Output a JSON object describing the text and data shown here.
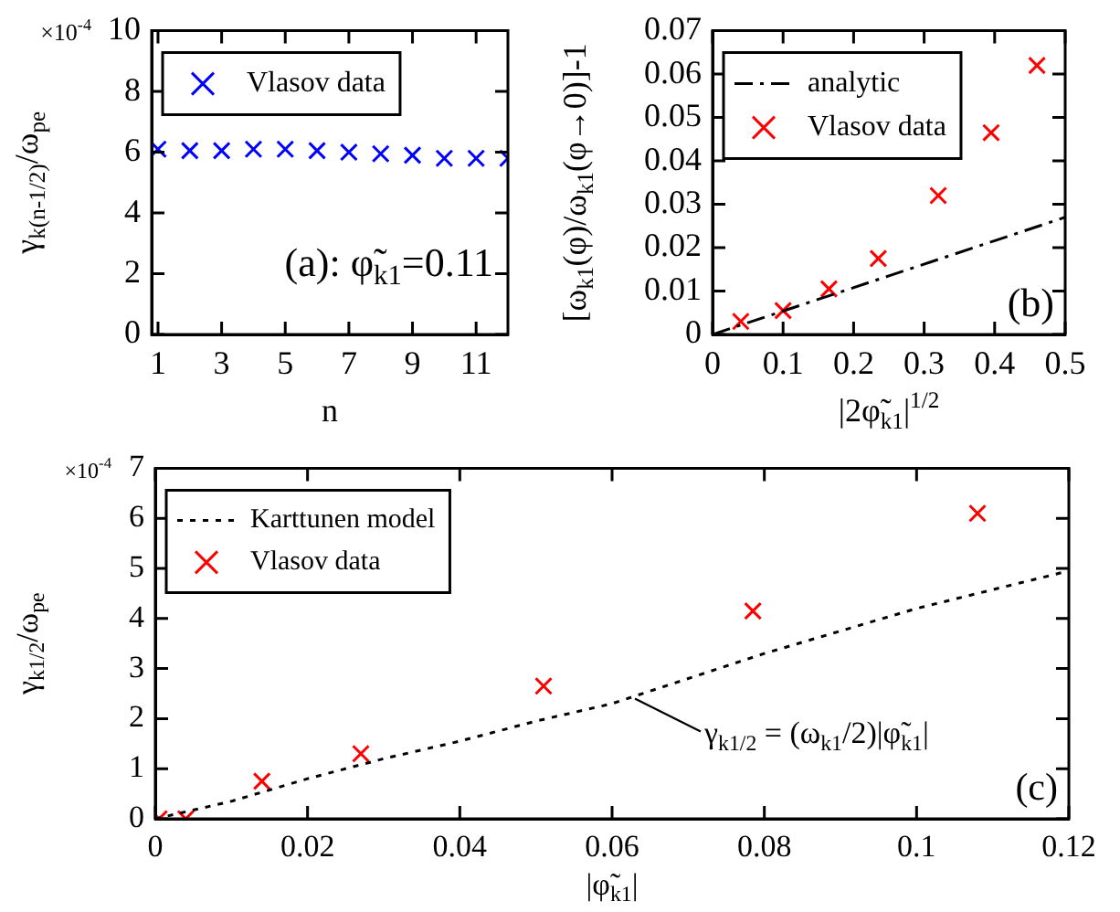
{
  "chart_data": [
    {
      "type": "scatter",
      "xlabel": "n",
      "ylabel": "γ$_{k(n-1/2)}$/ω$_{pe}$",
      "x": [
        1,
        2,
        3,
        4,
        5,
        6,
        7,
        8,
        9,
        10,
        11,
        12
      ],
      "series": [
        {
          "name": "Vlasov data",
          "color": "#0000ff",
          "marker": "cross",
          "values": [
            6.1,
            6.05,
            6.05,
            6.1,
            6.1,
            6.05,
            6.0,
            5.95,
            5.9,
            5.8,
            5.8,
            5.8
          ]
        }
      ],
      "xlim": [
        0.8,
        12
      ],
      "xticks": [
        1,
        3,
        5,
        7,
        9,
        11
      ],
      "ylim": [
        0,
        10
      ],
      "yticks": [
        0,
        2,
        4,
        6,
        8,
        10
      ],
      "legend": "top left",
      "annotations": [
        "×10$^{-4}$",
        "(a): φ̃$_{k1}$=0.11"
      ]
    },
    {
      "type": "scatter",
      "xlabel": "|2φ̃$_{k1}$|$^{1/2}$",
      "ylabel": "[ω$_{k1}$(φ)/ω$_{k1}$(φ→0)]-1",
      "series": [
        {
          "name": "analytic",
          "type": "line",
          "color": "#000000",
          "marker": "none",
          "line_style": "dashed",
          "x": [
            0,
            0.25,
            0.5
          ],
          "values": [
            0,
            0.0135,
            0.027
          ]
        },
        {
          "name": "Vlasov data",
          "color": "#ff0000",
          "marker": "cross",
          "x": [
            0.04,
            0.1,
            0.165,
            0.235,
            0.32,
            0.395,
            0.46
          ],
          "values": [
            0.003,
            0.0055,
            0.0105,
            0.0175,
            0.032,
            0.0465,
            0.062
          ]
        }
      ],
      "xlim": [
        0,
        0.5
      ],
      "xticks": [
        0,
        0.1,
        0.2,
        0.3,
        0.4,
        0.5
      ],
      "ylim": [
        0,
        0.07
      ],
      "yticks": [
        0,
        0.01,
        0.02,
        0.03,
        0.04,
        0.05,
        0.06,
        0.07
      ],
      "legend": "top left",
      "annotations": [
        "(b)"
      ]
    },
    {
      "type": "scatter",
      "xlabel": "|φ̃$_{k1}$|",
      "ylabel": "γ$_{k1/2}$/ω$_{pe}$",
      "series": [
        {
          "name": "Karttunen model",
          "type": "line",
          "color": "#000000",
          "marker": "none",
          "line_style": "dotted",
          "x": [
            0,
            0.01,
            0.02,
            0.03,
            0.04,
            0.05,
            0.06,
            0.08,
            0.1,
            0.12
          ],
          "values": [
            0,
            0.35,
            0.8,
            1.2,
            1.55,
            1.95,
            2.3,
            3.3,
            4.2,
            4.95
          ]
        },
        {
          "name": "Vlasov data",
          "color": "#ff0000",
          "marker": "cross",
          "x": [
            0.0005,
            0.004,
            0.014,
            0.027,
            0.051,
            0.0785,
            0.108
          ],
          "values": [
            0,
            0,
            0.75,
            1.3,
            2.65,
            4.15,
            6.1
          ]
        }
      ],
      "xlim": [
        0,
        0.12
      ],
      "xticks": [
        0,
        0.02,
        0.04,
        0.06,
        0.08,
        0.1,
        0.12
      ],
      "ylim": [
        0,
        7
      ],
      "yticks": [
        0,
        1,
        2,
        3,
        4,
        5,
        6,
        7
      ],
      "legend": "top left",
      "annotations": [
        "×10$^{-4}$",
        {
          "text": "γ$_{k1/2}$ = (ω$_{k1}$/2)|φ̃$_{k1}$|",
          "x": 0.063,
          "y": 2.4
        },
        "(c)"
      ]
    }
  ]
}
